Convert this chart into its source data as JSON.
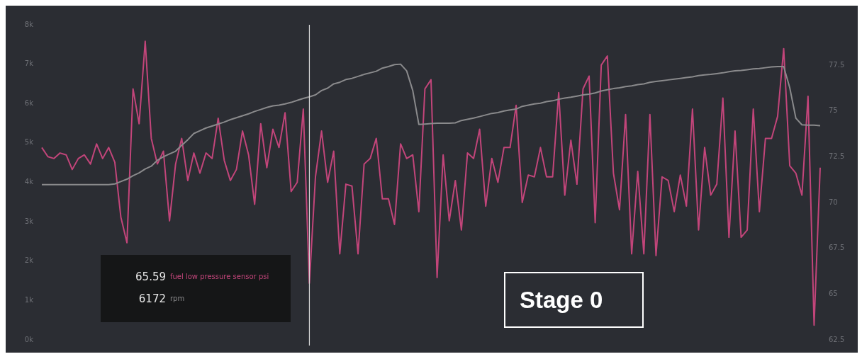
{
  "chart_data": {
    "type": "line",
    "categories": [
      null,
      null,
      null,
      null,
      null,
      null,
      null,
      null,
      null,
      null,
      null,
      null,
      null,
      null,
      null,
      null,
      null,
      null,
      null,
      null,
      null,
      null,
      null,
      null,
      null,
      null,
      null,
      null,
      null,
      null,
      null,
      null,
      null,
      null,
      null,
      null,
      null,
      null,
      null,
      null,
      null,
      null,
      null,
      null,
      null,
      null,
      null,
      null,
      null,
      null,
      null,
      null,
      null,
      null,
      null,
      null,
      null,
      null,
      null,
      null,
      null,
      null,
      null,
      null,
      null,
      null,
      null,
      null,
      null,
      null,
      null,
      null,
      null,
      null,
      null,
      null,
      null,
      null,
      null,
      null,
      null,
      null,
      null,
      null,
      null,
      null,
      null,
      null,
      null,
      null,
      null,
      null,
      null,
      null,
      null,
      null,
      null,
      null,
      null,
      null,
      null,
      null,
      null,
      null,
      null,
      null,
      null,
      null,
      null,
      null,
      null,
      null,
      null,
      null,
      null,
      null,
      null,
      null,
      null,
      null,
      null,
      null,
      null,
      null,
      null,
      null,
      null,
      null,
      null
    ],
    "series": [
      {
        "name": "rpm",
        "color": "#8a8a8c",
        "values": [
          3940,
          3940,
          3940,
          3940,
          3940,
          3940,
          3940,
          3940,
          3940,
          3940,
          3940,
          3940,
          3960,
          4020,
          4080,
          4170,
          4240,
          4340,
          4410,
          4560,
          4650,
          4720,
          4790,
          4940,
          5080,
          5240,
          5310,
          5380,
          5430,
          5480,
          5530,
          5590,
          5640,
          5690,
          5740,
          5800,
          5850,
          5900,
          5940,
          5960,
          5990,
          6030,
          6080,
          6130,
          6172,
          6220,
          6330,
          6390,
          6500,
          6540,
          6610,
          6640,
          6690,
          6740,
          6780,
          6820,
          6900,
          6940,
          6990,
          7000,
          6830,
          6330,
          5470,
          5480,
          5490,
          5500,
          5500,
          5500,
          5510,
          5570,
          5600,
          5630,
          5670,
          5710,
          5750,
          5770,
          5810,
          5840,
          5860,
          5930,
          5960,
          5990,
          6010,
          6050,
          6070,
          6110,
          6140,
          6160,
          6190,
          6220,
          6240,
          6270,
          6320,
          6350,
          6380,
          6400,
          6430,
          6450,
          6480,
          6500,
          6540,
          6560,
          6580,
          6600,
          6620,
          6640,
          6660,
          6680,
          6710,
          6730,
          6740,
          6760,
          6780,
          6810,
          6830,
          6840,
          6860,
          6880,
          6890,
          6910,
          6930,
          6940,
          6940,
          6400,
          5630,
          5460,
          5450,
          5450,
          5440
        ]
      },
      {
        "name": "fuel low pressure sensor psi",
        "color": "#c2457a",
        "axis": "y2",
        "values": [
          73.0,
          72.5,
          72.4,
          72.7,
          72.6,
          71.8,
          72.4,
          72.6,
          72.1,
          73.2,
          72.4,
          73.0,
          72.2,
          69.2,
          67.8,
          76.2,
          74.3,
          78.8,
          73.5,
          72.1,
          72.8,
          69.0,
          72.1,
          73.5,
          71.2,
          72.7,
          71.6,
          72.7,
          72.4,
          74.6,
          72.3,
          71.2,
          71.8,
          73.9,
          72.6,
          69.9,
          74.3,
          71.9,
          74.0,
          73.0,
          74.9,
          70.6,
          71.1,
          75.1,
          65.59,
          71.4,
          73.9,
          71.1,
          72.8,
          67.2,
          71.0,
          70.9,
          67.2,
          72.1,
          72.4,
          73.5,
          70.2,
          70.2,
          68.8,
          73.2,
          72.4,
          72.6,
          69.5,
          76.2,
          76.7,
          65.9,
          72.6,
          69.0,
          71.2,
          68.5,
          72.7,
          72.4,
          74.0,
          69.8,
          72.4,
          71.1,
          73.0,
          73.0,
          75.3,
          70.0,
          71.5,
          71.4,
          73.0,
          71.4,
          71.4,
          76.0,
          70.4,
          73.4,
          71.0,
          76.2,
          76.9,
          68.9,
          77.5,
          78.0,
          71.6,
          69.6,
          74.8,
          67.2,
          71.7,
          67.2,
          74.8,
          67.1,
          71.4,
          71.2,
          69.5,
          71.5,
          69.8,
          75.1,
          68.5,
          73.0,
          70.4,
          71.0,
          75.7,
          68.1,
          73.9,
          68.1,
          68.5,
          75.1,
          69.5,
          73.5,
          73.5,
          74.7,
          78.4,
          72.0,
          71.6,
          70.4,
          75.8,
          63.3,
          71.9
        ]
      }
    ],
    "ylim": [
      0,
      8000
    ],
    "yticks": [
      {
        "value": 0,
        "label": "0k"
      },
      {
        "value": 1000,
        "label": "1k"
      },
      {
        "value": 2000,
        "label": "2k"
      },
      {
        "value": 3000,
        "label": "3k"
      },
      {
        "value": 4000,
        "label": "4k"
      },
      {
        "value": 5000,
        "label": "5k"
      },
      {
        "value": 6000,
        "label": "6k"
      },
      {
        "value": 7000,
        "label": "7k"
      },
      {
        "value": 8000,
        "label": "8k"
      }
    ],
    "y2lim": [
      62.5,
      79.7
    ],
    "y2ticks": [
      62.5,
      65,
      67.5,
      70,
      72.5,
      75,
      77.5
    ],
    "annotations": [
      "65.59",
      "6172",
      "Stage 0"
    ],
    "legend": "bottom left",
    "tick_labels": "y",
    "grid": false,
    "marker": "none",
    "line_style": "solid"
  }
}
